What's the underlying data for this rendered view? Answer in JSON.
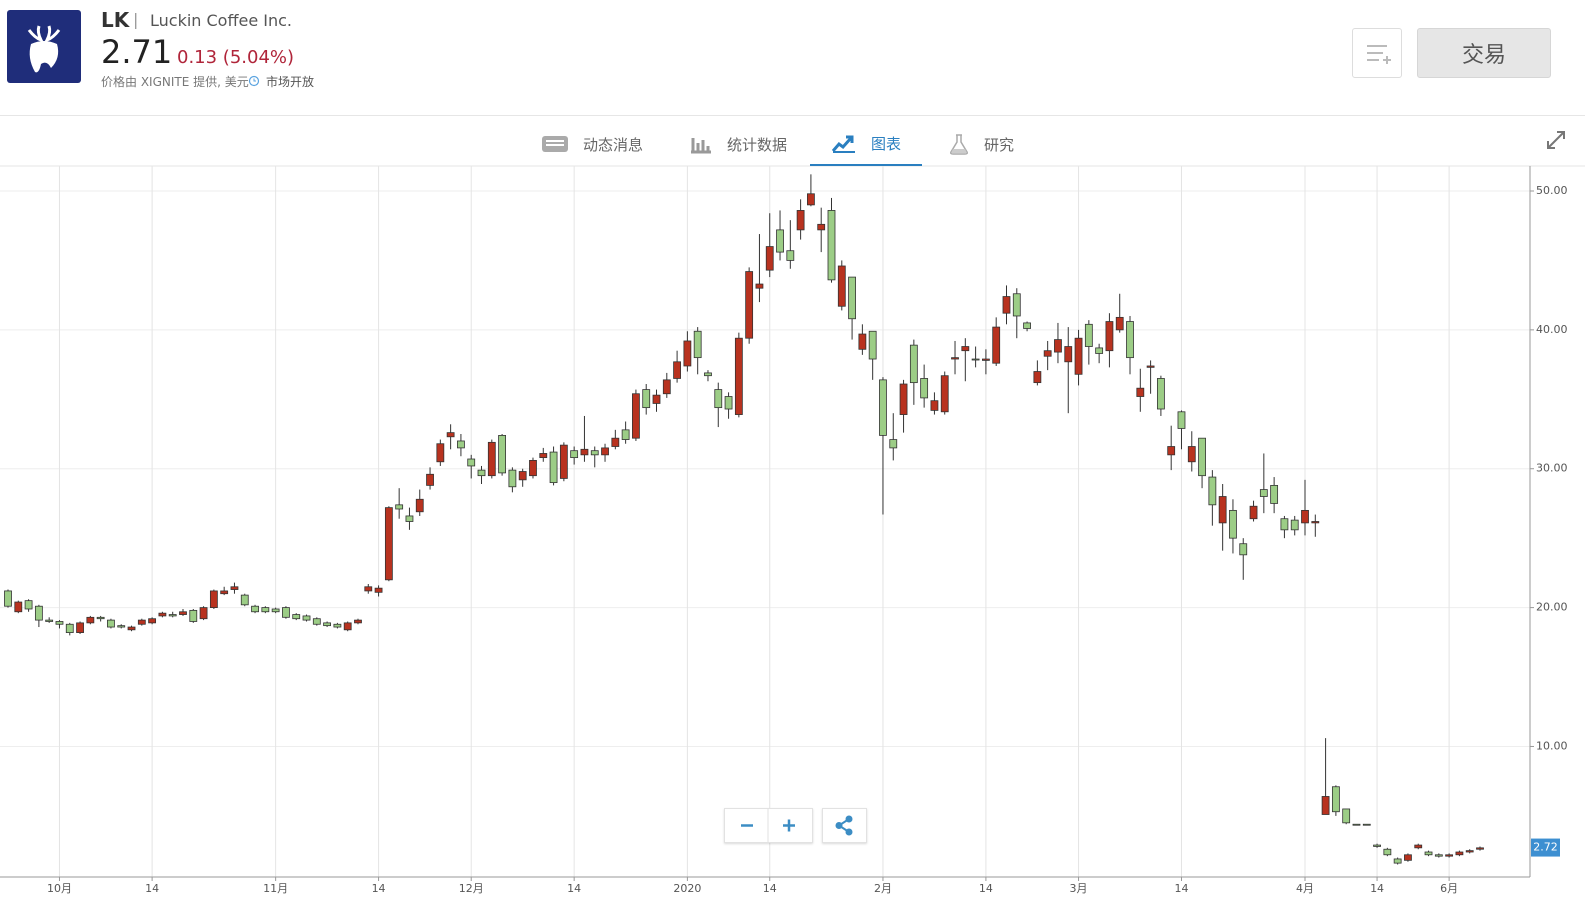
{
  "header": {
    "ticker": "LK",
    "company": "Luckin Coffee Inc.",
    "price": "2.71",
    "change": "0.13 (5.04%)",
    "source_note": "价格由 XIGNITE 提供, 美元",
    "market_status": "市场开放",
    "trade_button": "交易"
  },
  "tabs": [
    "动态消息",
    "统计数据",
    "图表",
    "研究"
  ],
  "chart_data": {
    "type": "candlestick",
    "categories": [
      null,
      null,
      null,
      null,
      null,
      "10月",
      null,
      null,
      null,
      null,
      null,
      null,
      null,
      null,
      "14",
      null,
      null,
      null,
      null,
      null,
      null,
      null,
      null,
      null,
      null,
      null,
      "11月",
      null,
      null,
      null,
      null,
      null,
      null,
      null,
      null,
      null,
      "14",
      null,
      null,
      null,
      null,
      null,
      null,
      null,
      null,
      "12月",
      null,
      null,
      null,
      null,
      null,
      null,
      null,
      null,
      null,
      "14",
      null,
      null,
      null,
      null,
      null,
      null,
      null,
      null,
      null,
      null,
      "2020",
      null,
      null,
      null,
      null,
      null,
      null,
      null,
      "14",
      null,
      null,
      null,
      null,
      null,
      null,
      null,
      null,
      null,
      null,
      "2月",
      null,
      null,
      null,
      null,
      null,
      null,
      null,
      null,
      null,
      "14",
      null,
      null,
      null,
      null,
      null,
      null,
      null,
      null,
      "3月",
      null,
      null,
      null,
      null,
      null,
      null,
      null,
      null,
      null,
      "14",
      null,
      null,
      null,
      null,
      null,
      null,
      null,
      null,
      null,
      null,
      null,
      "4月",
      null,
      null,
      null,
      null,
      null,
      null,
      "14",
      null,
      null,
      null,
      null,
      null,
      null,
      "6月",
      null,
      null,
      null
    ],
    "open": [
      21.2,
      19.7,
      20.5,
      20.1,
      19.1,
      19.0,
      18.8,
      18.2,
      18.9,
      19.3,
      19.1,
      18.7,
      18.4,
      18.8,
      18.9,
      19.4,
      19.5,
      19.5,
      19.8,
      19.2,
      20.0,
      21.0,
      21.3,
      20.9,
      20.1,
      20.0,
      19.9,
      20.0,
      19.5,
      19.4,
      19.2,
      18.9,
      18.8,
      18.4,
      18.9,
      21.2,
      21.1,
      22.0,
      27.4,
      26.6,
      26.9,
      28.8,
      30.5,
      32.3,
      32.0,
      30.7,
      29.9,
      29.5,
      32.4,
      29.9,
      29.2,
      29.5,
      30.8,
      31.2,
      29.3,
      31.3,
      31.0,
      31.3,
      31.0,
      31.6,
      32.8,
      32.2,
      35.7,
      34.7,
      35.4,
      36.5,
      37.4,
      39.9,
      36.9,
      35.7,
      35.2,
      33.9,
      39.4,
      43.0,
      44.3,
      47.2,
      45.7,
      47.2,
      49.0,
      47.2,
      48.6,
      41.7,
      43.8,
      38.6,
      39.9,
      36.4,
      32.1,
      33.9,
      38.9,
      36.5,
      34.2,
      34.1,
      37.9,
      38.5,
      37.9,
      37.8,
      37.6,
      41.2,
      42.6,
      40.5,
      36.2,
      38.1,
      38.4,
      37.7,
      36.8,
      40.4,
      38.7,
      38.5,
      40.0,
      40.6,
      35.2,
      37.3,
      36.5,
      31.0,
      34.1,
      30.5,
      32.2,
      29.4,
      26.1,
      27.0,
      24.6,
      26.4,
      28.5,
      28.8,
      26.4,
      26.3,
      26.1,
      26.1,
      5.1,
      7.1,
      5.5,
      4.4,
      4.4,
      2.9,
      2.6,
      1.9,
      1.8,
      2.7,
      2.4,
      2.2,
      2.1,
      2.2,
      2.4,
      2.6
    ],
    "high": [
      21.3,
      20.5,
      20.6,
      20.2,
      19.3,
      19.1,
      18.9,
      19.0,
      19.4,
      19.4,
      19.2,
      18.8,
      18.7,
      19.2,
      19.3,
      19.7,
      19.7,
      19.9,
      19.9,
      20.1,
      21.3,
      21.5,
      21.8,
      21.0,
      20.2,
      20.1,
      20.0,
      20.1,
      19.6,
      19.5,
      19.3,
      19.0,
      18.9,
      19.0,
      19.2,
      21.7,
      21.6,
      27.3,
      28.6,
      27.2,
      28.5,
      30.1,
      32.1,
      33.2,
      32.5,
      31.0,
      30.2,
      32.1,
      32.5,
      30.1,
      30.0,
      30.8,
      31.5,
      31.6,
      31.9,
      31.6,
      33.8,
      31.6,
      31.8,
      32.8,
      33.4,
      35.7,
      36.1,
      35.7,
      36.9,
      38.5,
      39.9,
      40.2,
      37.1,
      36.2,
      35.5,
      39.8,
      44.5,
      46.9,
      48.4,
      48.6,
      47.9,
      49.4,
      51.2,
      48.8,
      49.5,
      45.0,
      43.8,
      40.4,
      39.9,
      36.6,
      34.0,
      36.4,
      39.3,
      37.5,
      35.5,
      37.0,
      39.2,
      39.4,
      38.8,
      38.6,
      40.9,
      43.2,
      43.0,
      40.6,
      37.8,
      39.2,
      40.5,
      40.2,
      40.0,
      40.7,
      39.0,
      41.2,
      42.6,
      41.0,
      37.2,
      37.8,
      36.7,
      33.1,
      34.2,
      32.7,
      32.2,
      29.9,
      28.9,
      27.8,
      25.0,
      27.7,
      31.1,
      29.4,
      26.6,
      26.6,
      29.2,
      26.7,
      10.6,
      7.2,
      5.5,
      4.4,
      4.4,
      3.0,
      2.7,
      2.0,
      2.3,
      3.0,
      2.5,
      2.3,
      2.3,
      2.5,
      2.6,
      2.8
    ],
    "low": [
      20.0,
      19.6,
      19.7,
      18.6,
      18.9,
      18.5,
      18.0,
      18.1,
      18.8,
      19.0,
      18.5,
      18.5,
      18.3,
      18.7,
      18.8,
      19.3,
      19.3,
      19.4,
      18.9,
      19.1,
      19.9,
      20.9,
      21.0,
      20.1,
      19.6,
      19.6,
      19.6,
      19.2,
      19.1,
      19.0,
      18.7,
      18.6,
      18.5,
      18.3,
      18.8,
      21.0,
      20.8,
      21.9,
      26.4,
      25.6,
      26.6,
      28.5,
      30.2,
      31.4,
      30.9,
      29.3,
      28.9,
      29.3,
      29.5,
      28.3,
      28.7,
      29.3,
      30.5,
      28.8,
      29.1,
      30.3,
      30.5,
      30.1,
      30.5,
      31.4,
      31.8,
      32.0,
      33.9,
      34.1,
      35.1,
      36.2,
      37.0,
      36.8,
      36.3,
      33.0,
      33.6,
      33.7,
      39.0,
      42.0,
      43.8,
      45.0,
      44.4,
      46.5,
      48.9,
      45.6,
      43.4,
      41.4,
      39.3,
      38.2,
      36.4,
      26.7,
      30.6,
      32.6,
      34.6,
      34.4,
      33.9,
      33.9,
      36.8,
      36.3,
      37.3,
      36.8,
      37.4,
      40.4,
      39.4,
      39.9,
      36.0,
      37.1,
      37.6,
      34.0,
      36.0,
      37.5,
      37.6,
      37.3,
      39.8,
      36.8,
      34.1,
      35.4,
      33.8,
      29.9,
      31.4,
      29.8,
      28.6,
      25.9,
      24.1,
      23.9,
      22.0,
      26.2,
      26.8,
      26.8,
      25.0,
      25.2,
      25.2,
      25.1,
      5.1,
      5.0,
      4.4,
      4.4,
      4.4,
      2.7,
      2.1,
      1.5,
      1.7,
      2.6,
      2.1,
      2.0,
      2.0,
      2.1,
      2.3,
      2.5
    ],
    "close": [
      20.1,
      20.4,
      19.9,
      19.1,
      19.0,
      18.8,
      18.2,
      18.9,
      19.3,
      19.2,
      18.6,
      18.6,
      18.6,
      19.1,
      19.2,
      19.6,
      19.4,
      19.7,
      19.0,
      20.0,
      21.2,
      21.2,
      21.5,
      20.2,
      19.7,
      19.7,
      19.7,
      19.3,
      19.2,
      19.1,
      18.8,
      18.7,
      18.6,
      18.9,
      19.1,
      21.5,
      21.4,
      27.2,
      27.1,
      26.2,
      27.8,
      29.6,
      31.8,
      32.6,
      31.5,
      30.2,
      29.5,
      31.9,
      29.7,
      28.7,
      29.8,
      30.6,
      31.1,
      29.0,
      31.7,
      30.8,
      31.4,
      31.0,
      31.5,
      32.2,
      32.1,
      35.4,
      34.4,
      35.3,
      36.4,
      37.7,
      39.2,
      38.0,
      36.7,
      34.4,
      34.3,
      39.4,
      44.2,
      43.3,
      46.0,
      45.6,
      45.0,
      48.6,
      49.8,
      47.6,
      43.6,
      44.6,
      40.8,
      39.7,
      37.9,
      32.4,
      31.5,
      36.1,
      36.2,
      35.1,
      34.9,
      36.7,
      38.0,
      38.8,
      37.9,
      37.9,
      40.2,
      42.4,
      41.0,
      40.1,
      37.0,
      38.5,
      39.3,
      38.8,
      39.4,
      38.8,
      38.3,
      40.6,
      40.9,
      38.0,
      35.8,
      37.4,
      34.3,
      31.6,
      32.9,
      31.6,
      29.5,
      27.4,
      28.0,
      25.0,
      23.8,
      27.3,
      28.0,
      27.5,
      25.6,
      25.6,
      27.0,
      26.2,
      6.4,
      5.3,
      4.5,
      4.4,
      4.4,
      2.8,
      2.2,
      1.6,
      2.2,
      2.9,
      2.2,
      2.1,
      2.2,
      2.4,
      2.5,
      2.7
    ],
    "up_color": "#b8321f",
    "down_color": "#9ccd86",
    "ylim": [
      0.6,
      51.8
    ],
    "yticks": [
      {
        "value": 10,
        "label": "10.00"
      },
      {
        "value": 20,
        "label": "20.00"
      },
      {
        "value": 30,
        "label": "30.00"
      },
      {
        "value": 40,
        "label": "40.00"
      },
      {
        "value": 50,
        "label": "50.00"
      }
    ],
    "last_price": 2.72,
    "last_price_color": "#3d8fd1",
    "grid": true
  }
}
